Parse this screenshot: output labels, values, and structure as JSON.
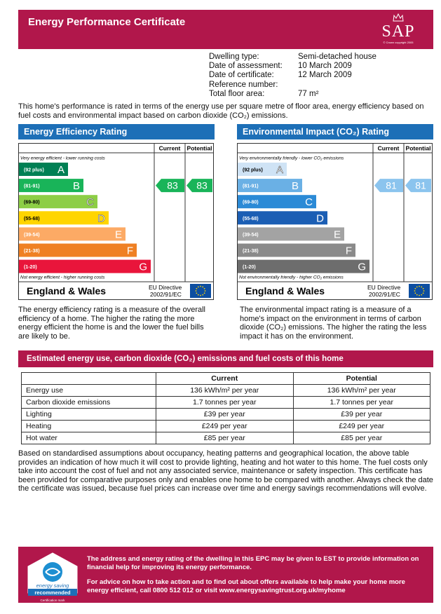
{
  "header": {
    "title": "Energy Performance Certificate",
    "logo_letters": "SAP",
    "logo_copyright": "© Crown copyright 2005"
  },
  "dwelling": {
    "rows": [
      {
        "label": "Dwelling type:",
        "value": "Semi-detached house"
      },
      {
        "label": "Date of assessment:",
        "value": "10 March 2009"
      },
      {
        "label": "Date of certificate:",
        "value": "12 March 2009"
      },
      {
        "label": "Reference number:",
        "value": ""
      },
      {
        "label": "Total floor area:",
        "value": "77 m²"
      }
    ]
  },
  "intro": "This home's performance is rated in terms of the energy use per square metre of floor area, energy efficiency based on fuel costs and environmental impact based on carbon dioxide (CO₂) emissions.",
  "efficiency": {
    "title": "Energy Efficiency Rating",
    "col_current": "Current",
    "col_potential": "Potential",
    "top_note": "Very energy efficient - lower running costs",
    "bottom_note": "Not energy efficient - higher running costs",
    "bands": [
      {
        "range": "(92 plus)",
        "letter": "A",
        "color": "#008054"
      },
      {
        "range": "(81-91)",
        "letter": "B",
        "color": "#19b459"
      },
      {
        "range": "(69-80)",
        "letter": "C",
        "color": "#8dce46"
      },
      {
        "range": "(55-68)",
        "letter": "D",
        "color": "#ffd500"
      },
      {
        "range": "(39-54)",
        "letter": "E",
        "color": "#fcaa65"
      },
      {
        "range": "(21-38)",
        "letter": "F",
        "color": "#ef8023"
      },
      {
        "range": "(1-20)",
        "letter": "G",
        "color": "#e9153b"
      }
    ],
    "current": "83",
    "potential": "83",
    "current_band": "B",
    "potential_band": "B",
    "arrow_color": "#19b459",
    "region": "England & Wales",
    "directive": "EU Directive 2002/91/EC",
    "description": "The energy efficiency rating is a measure of the overall efficiency of a home. The higher the rating the more energy efficient the home is and the lower the fuel bills are likely to be."
  },
  "environmental": {
    "title": "Environmental Impact (CO₂) Rating",
    "col_current": "Current",
    "col_potential": "Potential",
    "top_note": "Very environmentally friendly - lower  CO₂ emissions",
    "bottom_note": "Not environmentally friendly - higher  CO₂ emissions",
    "bands": [
      {
        "range": "(92 plus)",
        "letter": "A",
        "color": "#cfe3f5"
      },
      {
        "range": "(81-91)",
        "letter": "B",
        "color": "#6ab0e5"
      },
      {
        "range": "(69-80)",
        "letter": "C",
        "color": "#2b8ad6"
      },
      {
        "range": "(55-68)",
        "letter": "D",
        "color": "#1b5eb4"
      },
      {
        "range": "(39-54)",
        "letter": "E",
        "color": "#a3a3a3"
      },
      {
        "range": "(21-38)",
        "letter": "F",
        "color": "#8a8a8a"
      },
      {
        "range": "(1-20)",
        "letter": "G",
        "color": "#6d6d6d"
      }
    ],
    "current": "81",
    "potential": "81",
    "current_band": "B",
    "potential_band": "B",
    "arrow_color": "#8bc4ee",
    "region": "England & Wales",
    "directive": "EU Directive 2002/91/EC",
    "description": "The environmental impact rating is a measure of a home's impact on the environment in terms of carbon dioxide (CO₂) emissions. The higher the rating the less impact it has on the environment."
  },
  "costs": {
    "title": "Estimated energy use, carbon dioxide (CO₂) emissions and fuel costs of this home",
    "headers": [
      "",
      "Current",
      "Potential"
    ],
    "rows": [
      {
        "label": "Energy use",
        "current": "136 kWh/m² per year",
        "potential": "136 kWh/m² per year"
      },
      {
        "label": "Carbon dioxide emissions",
        "current": "1.7 tonnes per year",
        "potential": "1.7 tonnes per year"
      },
      {
        "label": "Lighting",
        "current": "£39 per year",
        "potential": "£39 per year"
      },
      {
        "label": "Heating",
        "current": "£249 per year",
        "potential": "£249 per year"
      },
      {
        "label": "Hot water",
        "current": "£85 per year",
        "potential": "£85 per year"
      }
    ]
  },
  "notes": "Based on standardised assumptions about occupancy, heating patterns and geographical location, the above table provides an indication of how much it will cost to provide lighting, heating and hot water to this home. The fuel costs only take into account the cost of fuel and not any associated service, maintenance or safety inspection. This certificate has been provided for comparative purposes only and enables one home to be compared with another. Always check the date the certificate was issued, because fuel prices can increase over time and energy savings recommendations will evolve.",
  "footer": {
    "line1": "The address and energy rating of the dwelling in this EPC may be given to EST to provide information on financial help for improving its energy performance.",
    "line2": "For advice on how to take action and to find out about offers available to help make your home more energy efficient, call 0800 512 012 or visit www.energysavingtrust.org.uk/myhome",
    "logo_top": "energy saving",
    "logo_bottom": "recommended",
    "logo_mark": "Certification mark"
  },
  "colors": {
    "brand": "#b1174b",
    "panel_blue": "#1d6fb7",
    "eu_blue": "#0d4ea1"
  }
}
